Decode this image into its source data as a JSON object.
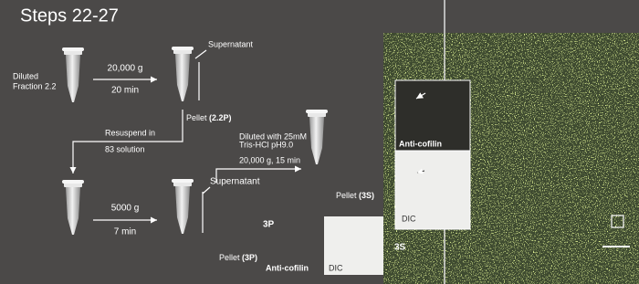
{
  "title": "Steps 22-27",
  "step1": {
    "sample": [
      "Diluted",
      "Fraction 2.2"
    ],
    "spin": [
      "20,000 g",
      "20 min"
    ],
    "supernatant": "Supernatant",
    "pellet": {
      "text": "Pellet",
      "id": "(2.2P)"
    }
  },
  "resuspend": [
    "Resuspend in",
    "83 solution"
  ],
  "step2": {
    "spin": [
      "5000 g",
      "7 min"
    ],
    "supernatant": "Supernatant",
    "pellet": {
      "text": "Pellet",
      "id": "(3P)"
    }
  },
  "step3": {
    "dilution": [
      "Diluted with 25mM",
      "Tris-HCl pH9.0"
    ],
    "spin": "20,000 g, 15 min",
    "pellet": {
      "text": "Pellet",
      "id": "(3S)"
    }
  },
  "panel_3p": {
    "label": "3P",
    "stain": "Anti-cofilin",
    "dic": "DIC"
  },
  "panel_3s": {
    "label": "3S",
    "stain": "Anti-cofilin",
    "dic": "DIC"
  }
}
